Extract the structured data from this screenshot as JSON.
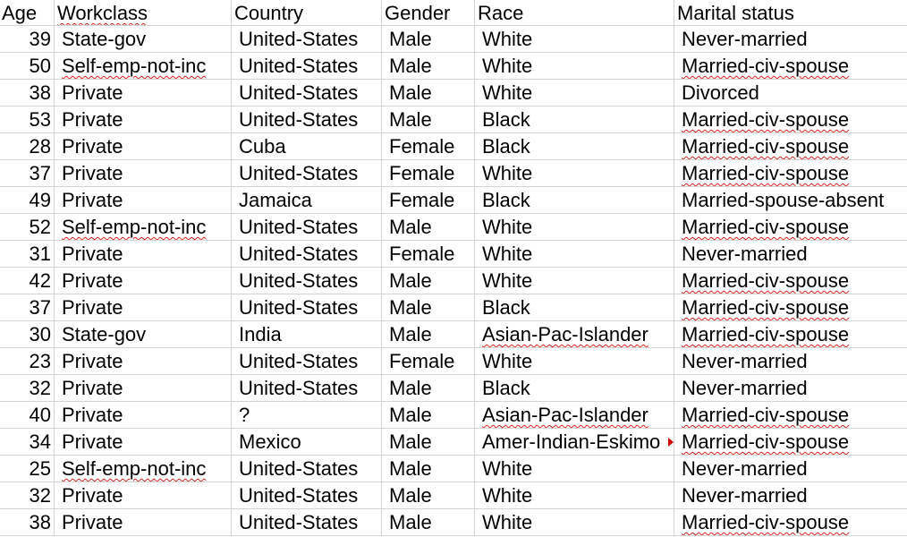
{
  "headers": {
    "age": "Age",
    "workclass": "Workclass",
    "country": "Country",
    "gender": "Gender",
    "race": "Race",
    "marital": "Marital status"
  },
  "rows": [
    {
      "age": "39",
      "workclass": "State-gov",
      "country": "United-States",
      "gender": "Male",
      "race": "White",
      "marital": "Never-married"
    },
    {
      "age": "50",
      "workclass": "Self-emp-not-inc",
      "country": "United-States",
      "gender": "Male",
      "race": "White",
      "marital": "Married-civ-spouse"
    },
    {
      "age": "38",
      "workclass": "Private",
      "country": "United-States",
      "gender": "Male",
      "race": "White",
      "marital": "Divorced"
    },
    {
      "age": "53",
      "workclass": "Private",
      "country": "United-States",
      "gender": "Male",
      "race": "Black",
      "marital": "Married-civ-spouse"
    },
    {
      "age": "28",
      "workclass": "Private",
      "country": "Cuba",
      "gender": "Female",
      "race": "Black",
      "marital": "Married-civ-spouse"
    },
    {
      "age": "37",
      "workclass": "Private",
      "country": "United-States",
      "gender": "Female",
      "race": "White",
      "marital": "Married-civ-spouse"
    },
    {
      "age": "49",
      "workclass": "Private",
      "country": "Jamaica",
      "gender": "Female",
      "race": "Black",
      "marital": "Married-spouse-absent"
    },
    {
      "age": "52",
      "workclass": "Self-emp-not-inc",
      "country": "United-States",
      "gender": "Male",
      "race": "White",
      "marital": "Married-civ-spouse"
    },
    {
      "age": "31",
      "workclass": "Private",
      "country": "United-States",
      "gender": "Female",
      "race": "White",
      "marital": "Never-married"
    },
    {
      "age": "42",
      "workclass": "Private",
      "country": "United-States",
      "gender": "Male",
      "race": "White",
      "marital": "Married-civ-spouse"
    },
    {
      "age": "37",
      "workclass": "Private",
      "country": "United-States",
      "gender": "Male",
      "race": "Black",
      "marital": "Married-civ-spouse"
    },
    {
      "age": "30",
      "workclass": "State-gov",
      "country": "India",
      "gender": "Male",
      "race": "Asian-Pac-Islander",
      "marital": "Married-civ-spouse"
    },
    {
      "age": "23",
      "workclass": "Private",
      "country": "United-States",
      "gender": "Female",
      "race": "White",
      "marital": "Never-married"
    },
    {
      "age": "32",
      "workclass": "Private",
      "country": "United-States",
      "gender": "Male",
      "race": "Black",
      "marital": "Never-married"
    },
    {
      "age": "40",
      "workclass": "Private",
      "country": "?",
      "gender": "Male",
      "race": "Asian-Pac-Islander",
      "marital": "Married-civ-spouse"
    },
    {
      "age": "34",
      "workclass": "Private",
      "country": "Mexico",
      "gender": "Male",
      "race": "Amer-Indian-Eskimo",
      "marital": "Married-civ-spouse"
    },
    {
      "age": "25",
      "workclass": "Self-emp-not-inc",
      "country": "United-States",
      "gender": "Male",
      "race": "White",
      "marital": "Never-married"
    },
    {
      "age": "32",
      "workclass": "Private",
      "country": "United-States",
      "gender": "Male",
      "race": "White",
      "marital": "Never-married"
    },
    {
      "age": "38",
      "workclass": "Private",
      "country": "United-States",
      "gender": "Male",
      "race": "White",
      "marital": "Married-civ-spouse"
    }
  ],
  "colors": {
    "gridline": "#d4d4d4",
    "spellcheck": "#e02020",
    "overflow_indicator": "#cc0000"
  }
}
